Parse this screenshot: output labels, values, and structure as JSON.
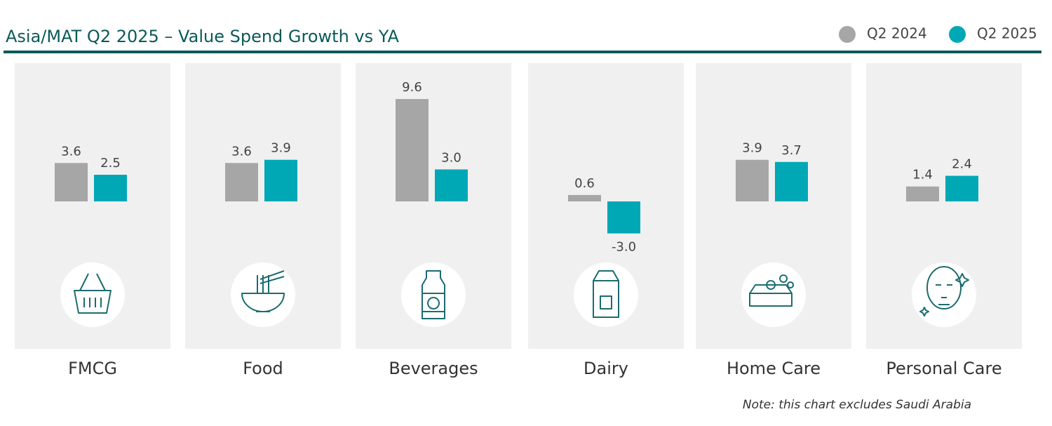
{
  "chart_data": {
    "type": "bar",
    "title": "Asia/MAT Q2 2025 – Value Spend Growth vs YA",
    "note": "Note: this chart excludes Saudi Arabia",
    "categories": [
      "FMCG",
      "Food",
      "Beverages",
      "Dairy",
      "Home Care",
      "Personal Care"
    ],
    "series": [
      {
        "name": "Q2 2024",
        "color": "#a6a6a6",
        "values": [
          3.6,
          3.6,
          9.6,
          0.6,
          3.9,
          1.4
        ],
        "value_labels": [
          "3.6",
          "3.6",
          "9.6",
          "0.6",
          "3.9",
          "1.4"
        ]
      },
      {
        "name": "Q2 2025",
        "color": "#00a8b5",
        "values": [
          2.5,
          3.9,
          3.0,
          -3.0,
          3.7,
          2.4
        ],
        "value_labels": [
          "2.5",
          "3.9",
          "3.0",
          "-3.0",
          "3.7",
          "2.4"
        ]
      }
    ]
  }
}
